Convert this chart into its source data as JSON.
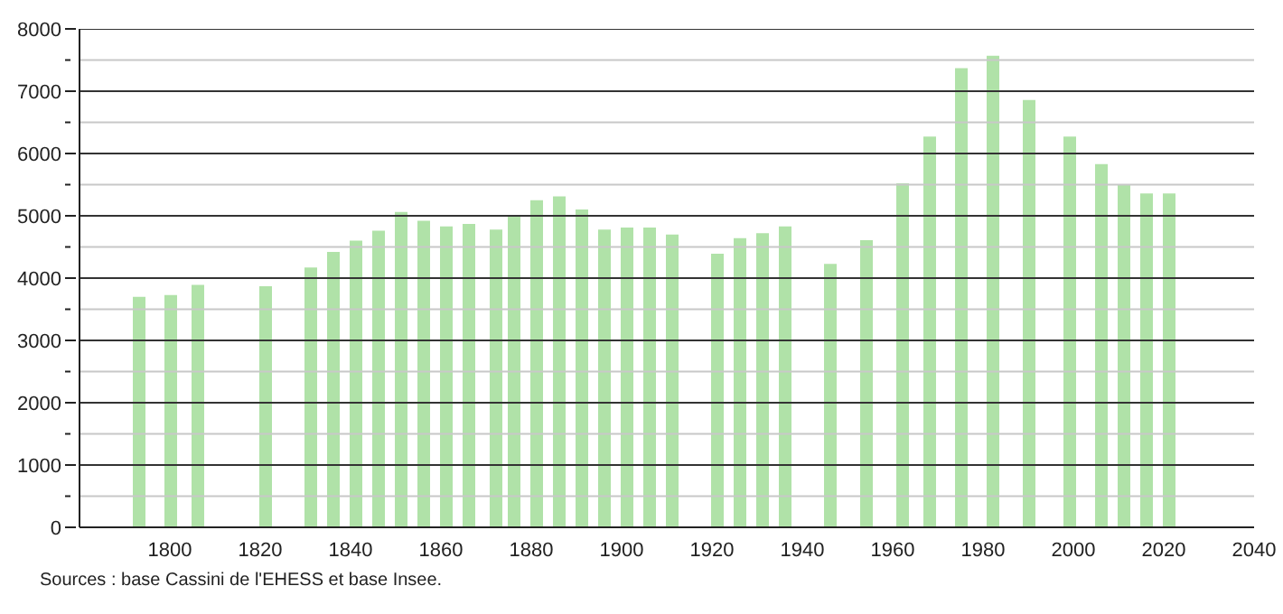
{
  "chart_data": {
    "type": "bar",
    "x": [
      1793,
      1800,
      1806,
      1821,
      1831,
      1836,
      1841,
      1846,
      1851,
      1856,
      1861,
      1866,
      1872,
      1876,
      1881,
      1886,
      1891,
      1896,
      1901,
      1906,
      1911,
      1921,
      1926,
      1931,
      1936,
      1946,
      1954,
      1962,
      1968,
      1975,
      1982,
      1990,
      1999,
      2006,
      2011,
      2016,
      2021
    ],
    "values": [
      3700,
      3730,
      3890,
      3870,
      4170,
      4420,
      4600,
      4760,
      5060,
      4920,
      4830,
      4870,
      4780,
      5000,
      5250,
      5310,
      5100,
      4780,
      4810,
      4810,
      4700,
      4390,
      4640,
      4720,
      4830,
      4230,
      4610,
      5520,
      6270,
      7370,
      7570,
      6860,
      6270,
      5830,
      5500,
      5360,
      5360
    ],
    "color": "#b0e2a8",
    "xlim": [
      1780,
      2040
    ],
    "xticks": [
      1800,
      1820,
      1840,
      1860,
      1880,
      1900,
      1920,
      1940,
      1960,
      1980,
      2000,
      2020,
      2040
    ],
    "ylim": [
      0,
      8000
    ],
    "yticks": [
      0,
      {
        "value": 500,
        "label": null
      },
      1000,
      {
        "value": 1500,
        "label": null
      },
      2000,
      {
        "value": 2500,
        "label": null
      },
      3000,
      {
        "value": 3500,
        "label": null
      },
      4000,
      {
        "value": 4500,
        "label": null
      },
      5000,
      {
        "value": 5500,
        "label": null
      },
      6000,
      {
        "value": 6500,
        "label": null
      },
      7000,
      {
        "value": 7500,
        "label": null
      },
      8000
    ],
    "grid": true,
    "annotations": [
      "Sources : base Cassini de l'EHESS et base Insee."
    ]
  }
}
